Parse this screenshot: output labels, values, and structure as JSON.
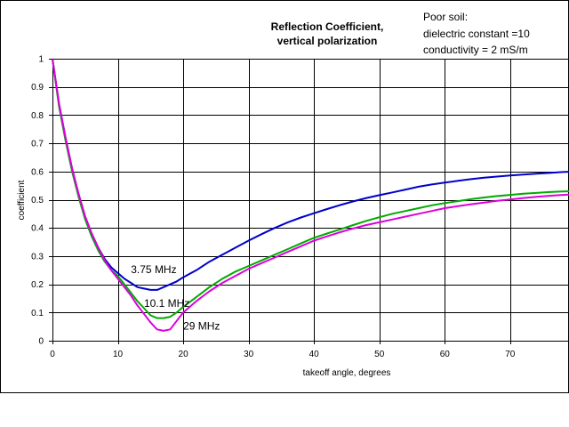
{
  "chart_data": {
    "type": "line",
    "title_lines": [
      "Reflection Coefficient,",
      "vertical polarization"
    ],
    "annotation_lines": [
      "Poor soil:",
      "dielectric constant =10",
      "conductivity = 2 mS/m"
    ],
    "xlabel": "takeoff angle, degrees",
    "ylabel": "coefficient",
    "xlim": [
      0,
      79
    ],
    "ylim": [
      0,
      1
    ],
    "x_ticks": [
      0,
      10,
      20,
      30,
      40,
      50,
      60,
      70
    ],
    "x_tick_labels": [
      "0",
      "10",
      "20",
      "30",
      "40",
      "50",
      "60",
      "70"
    ],
    "y_ticks": [
      0,
      0.1,
      0.2,
      0.3,
      0.4,
      0.5,
      0.6,
      0.7,
      0.8,
      0.9,
      1
    ],
    "y_tick_labels": [
      "0",
      "0.1",
      "0.2",
      "0.3",
      "0.4",
      "0.5",
      "0.6",
      "0.7",
      "0.8",
      "0.9",
      "1"
    ],
    "grid": true,
    "legend": "none",
    "series": [
      {
        "name": "3.75 MHz",
        "color": "#0000cc",
        "label_at": [
          12,
          0.24
        ],
        "x": [
          0,
          1,
          2,
          3,
          4,
          5,
          6,
          7,
          8,
          9,
          10,
          11,
          12,
          13,
          14,
          15,
          16,
          17,
          18,
          19,
          20,
          22,
          24,
          26,
          28,
          30,
          32,
          34,
          36,
          38,
          40,
          42,
          44,
          46,
          48,
          50,
          52,
          54,
          56,
          58,
          60,
          62,
          64,
          66,
          68,
          70,
          72,
          74,
          76,
          78,
          79
        ],
        "values": [
          1.0,
          0.84,
          0.72,
          0.61,
          0.52,
          0.44,
          0.38,
          0.33,
          0.29,
          0.26,
          0.24,
          0.22,
          0.205,
          0.19,
          0.185,
          0.18,
          0.18,
          0.19,
          0.2,
          0.21,
          0.225,
          0.25,
          0.28,
          0.305,
          0.33,
          0.355,
          0.378,
          0.4,
          0.42,
          0.437,
          0.452,
          0.467,
          0.481,
          0.494,
          0.506,
          0.516,
          0.526,
          0.536,
          0.546,
          0.554,
          0.561,
          0.567,
          0.573,
          0.578,
          0.582,
          0.586,
          0.589,
          0.592,
          0.595,
          0.598,
          0.599
        ]
      },
      {
        "name": "10.1 MHz",
        "color": "#00aa00",
        "label_at": [
          14,
          0.12
        ],
        "x": [
          0,
          1,
          2,
          3,
          4,
          5,
          6,
          7,
          8,
          9,
          10,
          11,
          12,
          13,
          14,
          15,
          16,
          17,
          18,
          19,
          20,
          22,
          24,
          26,
          28,
          30,
          32,
          34,
          36,
          38,
          40,
          42,
          44,
          46,
          48,
          50,
          52,
          54,
          56,
          58,
          60,
          62,
          64,
          66,
          68,
          70,
          72,
          74,
          76,
          78,
          79
        ],
        "values": [
          1.0,
          0.83,
          0.71,
          0.6,
          0.51,
          0.43,
          0.37,
          0.32,
          0.28,
          0.25,
          0.23,
          0.2,
          0.17,
          0.14,
          0.115,
          0.09,
          0.08,
          0.08,
          0.085,
          0.1,
          0.12,
          0.155,
          0.19,
          0.22,
          0.245,
          0.265,
          0.285,
          0.305,
          0.325,
          0.345,
          0.365,
          0.38,
          0.395,
          0.41,
          0.425,
          0.438,
          0.45,
          0.46,
          0.47,
          0.48,
          0.488,
          0.495,
          0.502,
          0.508,
          0.513,
          0.517,
          0.521,
          0.524,
          0.527,
          0.529,
          0.53
        ]
      },
      {
        "name": "29 MHz",
        "color": "#dd00dd",
        "label_at": [
          20,
          0.04
        ],
        "x": [
          0,
          1,
          2,
          3,
          4,
          5,
          6,
          7,
          8,
          9,
          10,
          11,
          12,
          13,
          14,
          15,
          16,
          17,
          18,
          19,
          20,
          22,
          24,
          26,
          28,
          30,
          32,
          34,
          36,
          38,
          40,
          42,
          44,
          46,
          48,
          50,
          52,
          54,
          56,
          58,
          60,
          62,
          64,
          66,
          68,
          70,
          72,
          74,
          76,
          78,
          79
        ],
        "values": [
          1.0,
          0.84,
          0.72,
          0.61,
          0.52,
          0.44,
          0.38,
          0.33,
          0.285,
          0.25,
          0.22,
          0.19,
          0.16,
          0.125,
          0.095,
          0.065,
          0.04,
          0.035,
          0.04,
          0.07,
          0.1,
          0.14,
          0.175,
          0.205,
          0.23,
          0.255,
          0.275,
          0.295,
          0.315,
          0.335,
          0.355,
          0.37,
          0.385,
          0.398,
          0.41,
          0.42,
          0.43,
          0.44,
          0.45,
          0.46,
          0.47,
          0.477,
          0.484,
          0.49,
          0.496,
          0.501,
          0.506,
          0.51,
          0.514,
          0.517,
          0.518
        ]
      }
    ]
  }
}
